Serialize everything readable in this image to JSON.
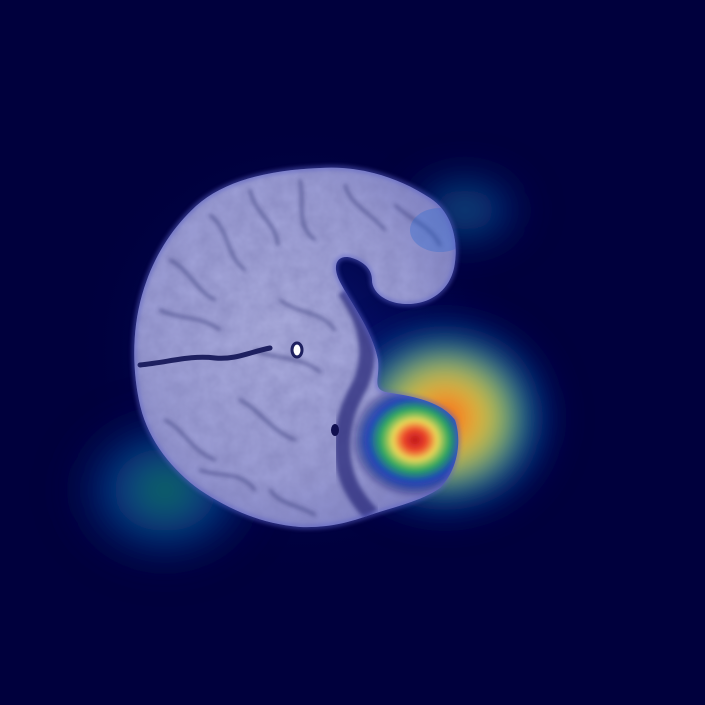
{
  "image": {
    "subject": "brain-mri-axial-slice",
    "overlay": "activation-heatmap",
    "colormap": "jet",
    "colors": {
      "background": "#00003d",
      "tissue": "#9ea0d8",
      "tissue_highlight": "#c4c6ee",
      "sulcus": "#2a2c6a",
      "heat_low": "#0a2aa8",
      "heat_mid": "#13a04a",
      "heat_high": "#ffe844",
      "heat_peak": "#c80000"
    },
    "hotspots": [
      {
        "name": "primary",
        "level": 1.0
      },
      {
        "name": "left-lower",
        "level": 0.45
      },
      {
        "name": "upper-right",
        "level": 0.3
      }
    ]
  }
}
